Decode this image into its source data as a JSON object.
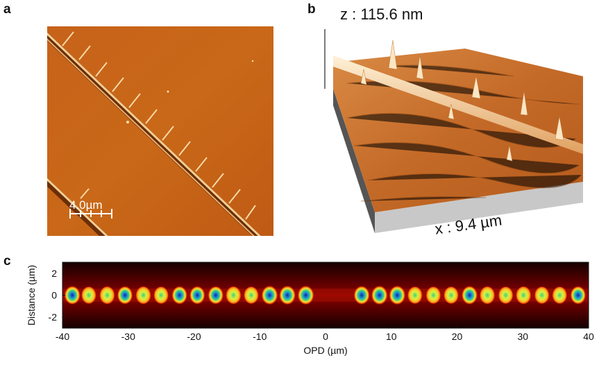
{
  "panels": {
    "a": {
      "letter": "a",
      "scale_bar_label": "4.0µm"
    },
    "b": {
      "letter": "b",
      "z_label": "z : 115.6 nm",
      "x_label": "x : 9.4 µm"
    },
    "c": {
      "letter": "c"
    }
  },
  "colors": {
    "afm_background": "#c8651a",
    "afm_line": "#f2d09a",
    "heatmap_background": "#8b0000",
    "spot_core": "#1e6fd0",
    "spot_ring": "#f5e23a"
  },
  "chart_data": {
    "type": "heatmap",
    "xlabel": "OPD (µm)",
    "ylabel": "Distance (µm)",
    "xlim": [
      -40,
      40
    ],
    "ylim": [
      -3,
      3
    ],
    "x_ticks": [
      "-40",
      "-30",
      "-20",
      "-10",
      "0",
      "10",
      "20",
      "30",
      "40"
    ],
    "y_ticks": [
      "2",
      "0",
      "-2"
    ],
    "spots_x": [
      -38.5,
      -36,
      -33.2,
      -30.5,
      -27.7,
      -25,
      -22.2,
      -19.5,
      -16.7,
      -14,
      -11.3,
      -8.5,
      -5.8,
      -3,
      5.5,
      8.2,
      10.9,
      13.6,
      16.4,
      19.1,
      21.9,
      24.6,
      27.4,
      30.1,
      32.9,
      35.6,
      38.4
    ],
    "spot_intensity": [
      0.9,
      0.6,
      0.7,
      0.8,
      0.7,
      0.6,
      0.8,
      0.8,
      0.8,
      0.7,
      0.6,
      1.0,
      1.0,
      1.0,
      0.9,
      1.0,
      1.0,
      0.6,
      0.6,
      0.6,
      0.9,
      0.7,
      0.6,
      0.7,
      0.6,
      0.6,
      0.8
    ],
    "spot_y": 0
  }
}
